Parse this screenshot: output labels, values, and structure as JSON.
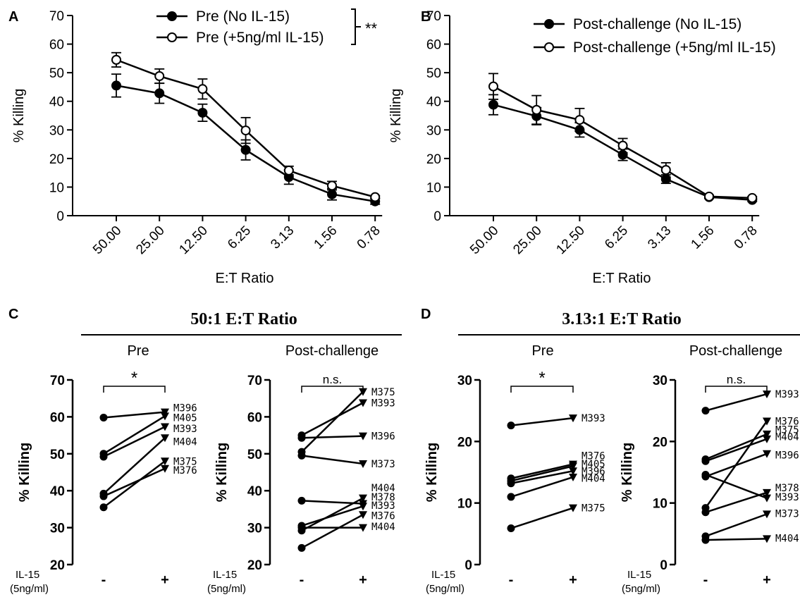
{
  "chart_data": [
    {
      "panel": "A",
      "type": "line",
      "xlabel": "E:T Ratio",
      "ylabel": "% Killing",
      "ylim": [
        0,
        70
      ],
      "yticks": [
        "0",
        "10",
        "20",
        "30",
        "40",
        "50",
        "60",
        "70"
      ],
      "categories": [
        "50.00",
        "25.00",
        "12.50",
        "6.25",
        "3.13",
        "1.56",
        "0.78"
      ],
      "legend_position": "top",
      "significance": "**",
      "series": [
        {
          "name": "Pre (No IL-15)",
          "marker": "filled-circle",
          "values": [
            45.5,
            42.8,
            36.0,
            23.0,
            13.5,
            7.5,
            5.0
          ],
          "errors": [
            4.0,
            3.5,
            3.0,
            3.5,
            2.5,
            2.0,
            1.0
          ]
        },
        {
          "name": "Pre (+5ng/ml IL-15)",
          "marker": "open-circle",
          "values": [
            54.5,
            48.8,
            44.3,
            29.8,
            15.8,
            10.5,
            6.5
          ],
          "errors": [
            2.5,
            2.5,
            3.5,
            4.5,
            1.5,
            1.5,
            0.5
          ]
        }
      ]
    },
    {
      "panel": "B",
      "type": "line",
      "xlabel": "E:T Ratio",
      "ylabel": "% Killing",
      "ylim": [
        0,
        70
      ],
      "yticks": [
        "0",
        "10",
        "20",
        "30",
        "40",
        "50",
        "60",
        "70"
      ],
      "categories": [
        "50.00",
        "25.00",
        "12.50",
        "6.25",
        "3.13",
        "1.56",
        "0.78"
      ],
      "legend_position": "top-right",
      "series": [
        {
          "name": "Post-challenge (No IL-15)",
          "marker": "filled-circle",
          "values": [
            38.8,
            34.8,
            30.0,
            21.3,
            12.8,
            6.5,
            5.5
          ],
          "errors": [
            3.5,
            3.0,
            2.5,
            2.0,
            1.5,
            0.5,
            0.5
          ]
        },
        {
          "name": "Post-challenge (+5ng/ml IL-15)",
          "marker": "open-circle",
          "values": [
            45.2,
            37.0,
            33.5,
            24.5,
            16.0,
            6.7,
            6.2
          ],
          "errors": [
            4.5,
            5.0,
            4.0,
            2.5,
            2.5,
            0.5,
            0.5
          ]
        }
      ]
    },
    {
      "panel": "C",
      "type": "paired-scatter",
      "title": "50:1 E:T Ratio",
      "subplots": [
        {
          "title": "Pre",
          "ylabel": "% Killing",
          "ylim": [
            20,
            70
          ],
          "yticks": [
            "20",
            "30",
            "40",
            "50",
            "60",
            "70"
          ],
          "x": [
            "-",
            "+"
          ],
          "significance": "*",
          "pairs": [
            {
              "id": "M396",
              "values": [
                59.8,
                61.3
              ]
            },
            {
              "id": "M405",
              "values": [
                50.0,
                60.2
              ]
            },
            {
              "id": "M393",
              "values": [
                49.2,
                57.3
              ]
            },
            {
              "id": "M404",
              "values": [
                39.2,
                54.3
              ]
            },
            {
              "id": "M375",
              "values": [
                35.5,
                48.0
              ]
            },
            {
              "id": "M376",
              "values": [
                38.5,
                46.0
              ]
            }
          ]
        },
        {
          "title": "Post-challenge",
          "ylabel": "% Killing",
          "ylim": [
            20,
            70
          ],
          "yticks": [
            "20",
            "30",
            "40",
            "50",
            "60",
            "70"
          ],
          "x": [
            "-",
            "+"
          ],
          "significance": "n.s.",
          "pairs": [
            {
              "id": "M375",
              "values": [
                50.5,
                66.8
              ]
            },
            {
              "id": "M393",
              "values": [
                55.0,
                63.8
              ]
            },
            {
              "id": "M396",
              "values": [
                54.3,
                54.8
              ]
            },
            {
              "id": "M373",
              "values": [
                49.5,
                47.3
              ]
            },
            {
              "id": "M404",
              "values": [
                29.2,
                38.0
              ]
            },
            {
              "id": "M378",
              "values": [
                37.3,
                36.5
              ]
            },
            {
              "id": "M393",
              "values": [
                30.5,
                35.8
              ]
            },
            {
              "id": "M376",
              "values": [
                24.5,
                33.5
              ]
            },
            {
              "id": "M404",
              "values": [
                30.0,
                30.0
              ]
            }
          ]
        }
      ]
    },
    {
      "panel": "D",
      "type": "paired-scatter",
      "title": "3.13:1 E:T Ratio",
      "subplots": [
        {
          "title": "Pre",
          "ylabel": "% Killing",
          "ylim": [
            0,
            30
          ],
          "yticks": [
            "0",
            "10",
            "20",
            "30"
          ],
          "x": [
            "-",
            "+"
          ],
          "significance": "*",
          "pairs": [
            {
              "id": "M393",
              "values": [
                22.6,
                23.8
              ]
            },
            {
              "id": "M376",
              "values": [
                14.0,
                16.3
              ]
            },
            {
              "id": "M405",
              "values": [
                13.6,
                16.0
              ]
            },
            {
              "id": "M396",
              "values": [
                13.2,
                15.2
              ]
            },
            {
              "id": "M404",
              "values": [
                11.0,
                14.2
              ]
            },
            {
              "id": "M375",
              "values": [
                5.9,
                9.2
              ]
            }
          ]
        },
        {
          "title": "Post-challenge",
          "ylabel": "% Killing",
          "ylim": [
            0,
            30
          ],
          "yticks": [
            "0",
            "10",
            "20",
            "30"
          ],
          "x": [
            "-",
            "+"
          ],
          "significance": "n.s.",
          "pairs": [
            {
              "id": "M393",
              "values": [
                25.0,
                27.7
              ]
            },
            {
              "id": "M376",
              "values": [
                9.2,
                23.3
              ]
            },
            {
              "id": "M375",
              "values": [
                17.1,
                21.2
              ]
            },
            {
              "id": "M404",
              "values": [
                16.8,
                20.4
              ]
            },
            {
              "id": "M396",
              "values": [
                14.3,
                18.0
              ]
            },
            {
              "id": "M378",
              "values": [
                8.5,
                11.7
              ]
            },
            {
              "id": "M393",
              "values": [
                14.6,
                10.8
              ]
            },
            {
              "id": "M373",
              "values": [
                4.6,
                8.2
              ]
            },
            {
              "id": "M404",
              "values": [
                4.0,
                4.2
              ]
            }
          ]
        }
      ]
    }
  ],
  "panel_labels": [
    "A",
    "B",
    "C",
    "D"
  ],
  "x_axis_label_line1": "IL-15",
  "x_axis_label_line2": "(5ng/ml)"
}
